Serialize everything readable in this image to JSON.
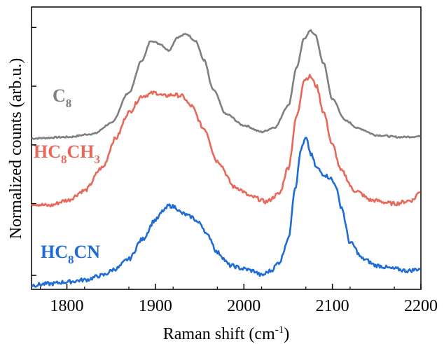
{
  "chart_data": {
    "type": "line",
    "xlabel": "Raman shift (cm",
    "xlabel_sup": "-1",
    "xlabel_close": ")",
    "ylabel": "Normalized counts (arb.u.)",
    "xlim": [
      1760,
      2200
    ],
    "ylim": [
      0,
      4.2
    ],
    "x_ticks": [
      1800,
      1900,
      2000,
      2100,
      2200
    ],
    "y_ticks_minor": [
      0.15,
      1.25,
      2.15,
      3.05,
      3.95
    ],
    "y_tick_labels_shown": false,
    "grid": false,
    "series": [
      {
        "name": "C8",
        "label_main": "C",
        "label_sub": "8",
        "color": "#7f7f7f",
        "x": [
          1760,
          1800,
          1830,
          1850,
          1870,
          1885,
          1895,
          1905,
          1915,
          1925,
          1935,
          1945,
          1955,
          1965,
          1980,
          2000,
          2020,
          2035,
          2050,
          2060,
          2068,
          2075,
          2080,
          2090,
          2100,
          2115,
          2130,
          2150,
          2175,
          2200
        ],
        "y": [
          2.25,
          2.27,
          2.32,
          2.48,
          2.95,
          3.45,
          3.75,
          3.7,
          3.6,
          3.8,
          3.85,
          3.75,
          3.45,
          3.0,
          2.62,
          2.45,
          2.35,
          2.42,
          2.75,
          3.35,
          3.78,
          3.9,
          3.85,
          3.4,
          2.85,
          2.52,
          2.4,
          2.3,
          2.27,
          2.28
        ]
      },
      {
        "name": "HC8CH3",
        "label_main": "HC",
        "label_sub1": "8",
        "label_mid": "CH",
        "label_sub2": "3",
        "color": "#e8685a",
        "x": [
          1760,
          1780,
          1800,
          1820,
          1840,
          1855,
          1870,
          1885,
          1900,
          1910,
          1920,
          1930,
          1940,
          1955,
          1970,
          1990,
          2010,
          2025,
          2040,
          2050,
          2060,
          2068,
          2075,
          2082,
          2090,
          2100,
          2110,
          2125,
          2145,
          2170,
          2190,
          2200
        ],
        "y": [
          1.25,
          1.22,
          1.3,
          1.45,
          1.8,
          2.25,
          2.65,
          2.9,
          2.95,
          2.9,
          2.92,
          2.9,
          2.75,
          2.4,
          1.9,
          1.5,
          1.35,
          1.28,
          1.4,
          1.8,
          2.6,
          3.15,
          3.2,
          3.05,
          2.65,
          2.15,
          1.75,
          1.45,
          1.3,
          1.25,
          1.3,
          1.45
        ]
      },
      {
        "name": "HC8CN",
        "label_main": "HC",
        "label_sub1": "8",
        "label_mid": "CN",
        "label_sub2": "",
        "color": "#1f6cd6",
        "x": [
          1760,
          1780,
          1800,
          1820,
          1840,
          1855,
          1870,
          1885,
          1900,
          1910,
          1915,
          1922,
          1930,
          1940,
          1950,
          1960,
          1970,
          1985,
          2000,
          2010,
          2020,
          2030,
          2040,
          2050,
          2058,
          2065,
          2070,
          2076,
          2082,
          2090,
          2097,
          2103,
          2110,
          2120,
          2135,
          2150,
          2170,
          2185,
          2200
        ],
        "y": [
          0.0,
          0.02,
          0.05,
          0.08,
          0.15,
          0.25,
          0.4,
          0.7,
          1.0,
          1.15,
          1.22,
          1.2,
          1.1,
          1.05,
          0.95,
          0.75,
          0.5,
          0.3,
          0.25,
          0.22,
          0.15,
          0.22,
          0.35,
          0.7,
          1.5,
          2.1,
          2.25,
          2.0,
          1.8,
          1.7,
          1.65,
          1.55,
          1.2,
          0.65,
          0.4,
          0.3,
          0.25,
          0.22,
          0.25
        ]
      }
    ]
  }
}
